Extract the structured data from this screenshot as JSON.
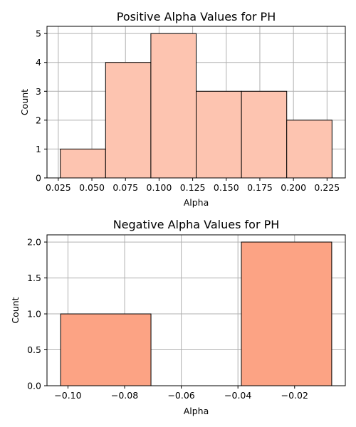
{
  "chart_data": [
    {
      "type": "bar",
      "title": "Positive Alpha Values for PH",
      "xlabel": "Alpha",
      "ylabel": "Count",
      "bins": [
        {
          "x0": 0.0265,
          "x1": 0.0602,
          "count": 1
        },
        {
          "x0": 0.0602,
          "x1": 0.0939,
          "count": 4
        },
        {
          "x0": 0.0939,
          "x1": 0.1276,
          "count": 5
        },
        {
          "x0": 0.1276,
          "x1": 0.1613,
          "count": 3
        },
        {
          "x0": 0.1613,
          "x1": 0.195,
          "count": 3
        },
        {
          "x0": 0.195,
          "x1": 0.2287,
          "count": 2
        }
      ],
      "xlim": [
        0.0166,
        0.2386
      ],
      "ylim": [
        0,
        5.25
      ],
      "xticks": [
        0.025,
        0.05,
        0.075,
        0.1,
        0.125,
        0.15,
        0.175,
        0.2,
        0.225
      ],
      "xtick_labels": [
        "0.025",
        "0.050",
        "0.075",
        "0.100",
        "0.125",
        "0.150",
        "0.175",
        "0.200",
        "0.225"
      ],
      "yticks": [
        0,
        1,
        2,
        3,
        4,
        5
      ],
      "ytick_labels": [
        "0",
        "1",
        "2",
        "3",
        "4",
        "5"
      ],
      "grid": true,
      "bar_color": "#fdc4b0",
      "edge_color": "#000000"
    },
    {
      "type": "bar",
      "title": "Negative Alpha Values for PH",
      "xlabel": "Alpha",
      "ylabel": "Count",
      "bins": [
        {
          "x0": -0.1026,
          "x1": -0.0707,
          "count": 1
        },
        {
          "x0": -0.0707,
          "x1": -0.0388,
          "count": 0
        },
        {
          "x0": -0.0388,
          "x1": -0.0069,
          "count": 2
        }
      ],
      "xlim": [
        -0.1074,
        -0.0021
      ],
      "ylim": [
        0,
        2.1
      ],
      "xticks": [
        -0.1,
        -0.08,
        -0.06,
        -0.04,
        -0.02
      ],
      "xtick_labels": [
        "−0.10",
        "−0.08",
        "−0.06",
        "−0.04",
        "−0.02"
      ],
      "yticks": [
        0,
        0.5,
        1,
        1.5,
        2
      ],
      "ytick_labels": [
        "0.0",
        "0.5",
        "1.0",
        "1.5",
        "2.0"
      ],
      "grid": true,
      "bar_color": "#fca384",
      "edge_color": "#000000"
    }
  ]
}
